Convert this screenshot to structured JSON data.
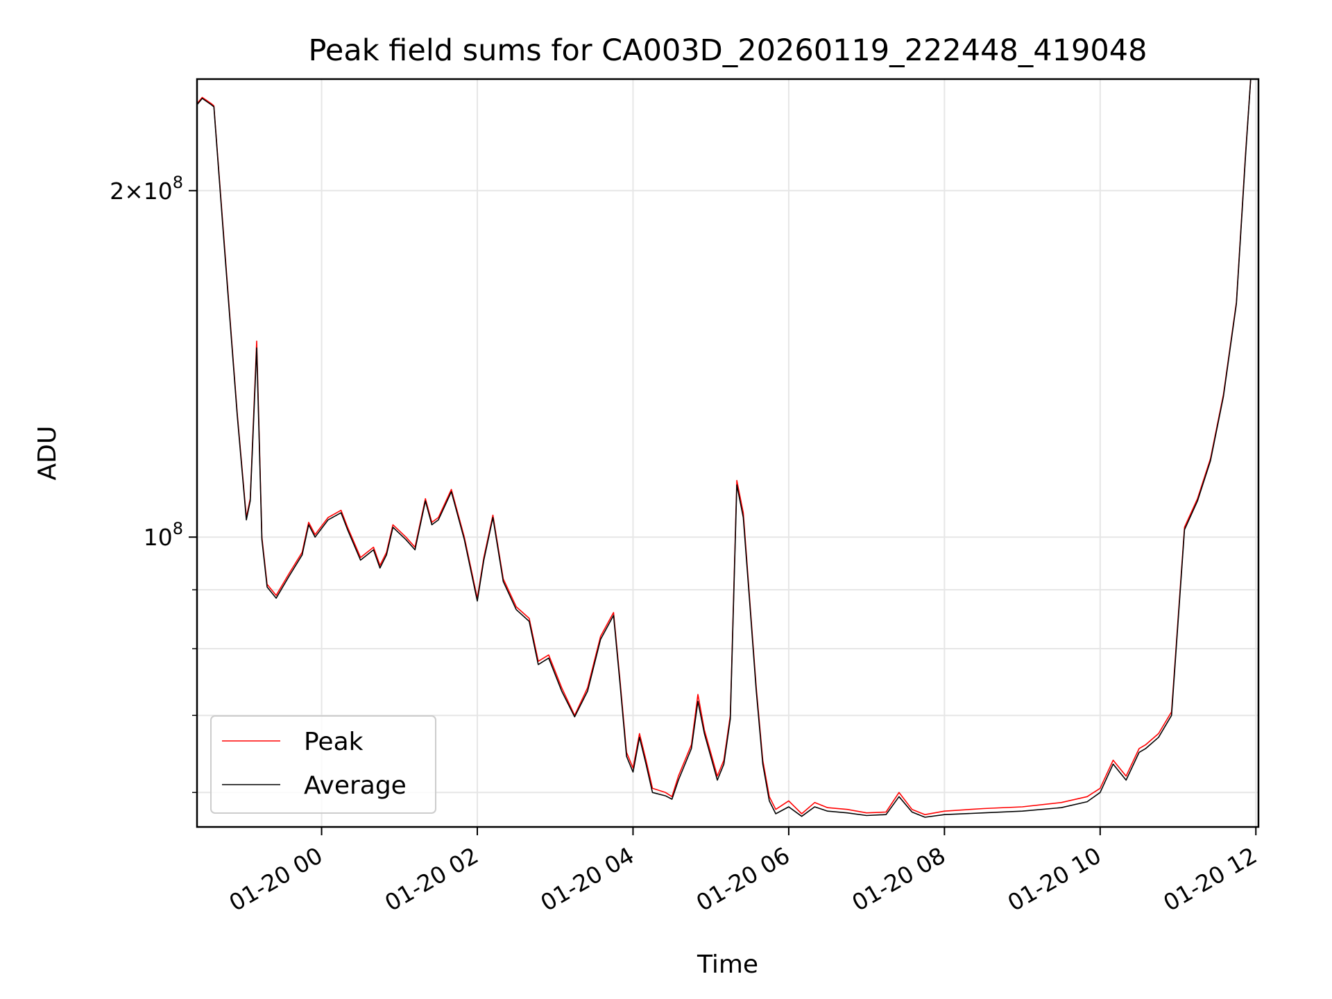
{
  "chart_data": {
    "type": "line",
    "title": "Peak field sums for CA003D_20260119_222448_419048",
    "xlabel": "Time",
    "ylabel": "ADU",
    "x_range": [
      "2026-01-19T22:24",
      "2026-01-20T12:02"
    ],
    "ylim": [
      56000000,
      250000000
    ],
    "y_scale": "log",
    "grid": true,
    "legend_position": "lower-left",
    "x_ticks": [
      {
        "value": "2026-01-20T00:00",
        "label": "01-20 00"
      },
      {
        "value": "2026-01-20T02:00",
        "label": "01-20 02"
      },
      {
        "value": "2026-01-20T04:00",
        "label": "01-20 04"
      },
      {
        "value": "2026-01-20T06:00",
        "label": "01-20 06"
      },
      {
        "value": "2026-01-20T08:00",
        "label": "01-20 08"
      },
      {
        "value": "2026-01-20T10:00",
        "label": "01-20 10"
      },
      {
        "value": "2026-01-20T12:00",
        "label": "01-20 12"
      }
    ],
    "y_major_ticks": [
      {
        "value": 200000000,
        "label_base": "2×10",
        "label_exp": "8"
      },
      {
        "value": 100000000,
        "label_base": "10",
        "label_exp": "8"
      }
    ],
    "y_minor_ticks": [
      60000000,
      70000000,
      80000000,
      90000000
    ],
    "series": [
      {
        "name": "Peak",
        "color": "#ff0000",
        "points": [
          [
            "2026-01-19T22:24",
            238000000
          ],
          [
            "2026-01-19T22:28",
            241000000
          ],
          [
            "2026-01-19T22:35",
            238000000
          ],
          [
            "2026-01-19T22:37",
            237000000
          ],
          [
            "2026-01-19T22:45",
            180000000
          ],
          [
            "2026-01-19T22:55",
            128000000
          ],
          [
            "2026-01-19T23:02",
            104000000
          ],
          [
            "2026-01-19T23:05",
            108000000
          ],
          [
            "2026-01-19T23:10",
            148000000
          ],
          [
            "2026-01-19T23:14",
            100000000
          ],
          [
            "2026-01-19T23:18",
            91000000
          ],
          [
            "2026-01-19T23:25",
            89000000
          ],
          [
            "2026-01-19T23:35",
            93000000
          ],
          [
            "2026-01-19T23:45",
            97000000
          ],
          [
            "2026-01-19T23:50",
            103000000
          ],
          [
            "2026-01-19T23:55",
            100500000
          ],
          [
            "2026-01-20T00:05",
            104000000
          ],
          [
            "2026-01-20T00:15",
            105500000
          ],
          [
            "2026-01-20T00:20",
            102000000
          ],
          [
            "2026-01-20T00:30",
            96000000
          ],
          [
            "2026-01-20T00:40",
            98000000
          ],
          [
            "2026-01-20T00:45",
            94500000
          ],
          [
            "2026-01-20T00:50",
            97000000
          ],
          [
            "2026-01-20T00:55",
            102500000
          ],
          [
            "2026-01-20T01:05",
            100000000
          ],
          [
            "2026-01-20T01:12",
            98000000
          ],
          [
            "2026-01-20T01:20",
            108000000
          ],
          [
            "2026-01-20T01:25",
            103000000
          ],
          [
            "2026-01-20T01:30",
            104000000
          ],
          [
            "2026-01-20T01:40",
            110000000
          ],
          [
            "2026-01-20T01:50",
            100000000
          ],
          [
            "2026-01-20T02:00",
            88500000
          ],
          [
            "2026-01-20T02:05",
            96000000
          ],
          [
            "2026-01-20T02:12",
            104500000
          ],
          [
            "2026-01-20T02:20",
            92000000
          ],
          [
            "2026-01-20T02:30",
            87000000
          ],
          [
            "2026-01-20T02:40",
            85000000
          ],
          [
            "2026-01-20T02:47",
            78000000
          ],
          [
            "2026-01-20T02:55",
            79000000
          ],
          [
            "2026-01-20T03:05",
            74000000
          ],
          [
            "2026-01-20T03:15",
            70000000
          ],
          [
            "2026-01-20T03:25",
            74000000
          ],
          [
            "2026-01-20T03:35",
            82000000
          ],
          [
            "2026-01-20T03:45",
            86000000
          ],
          [
            "2026-01-20T03:50",
            75000000
          ],
          [
            "2026-01-20T03:55",
            65000000
          ],
          [
            "2026-01-20T04:00",
            63000000
          ],
          [
            "2026-01-20T04:05",
            67500000
          ],
          [
            "2026-01-20T04:10",
            64000000
          ],
          [
            "2026-01-20T04:15",
            60500000
          ],
          [
            "2026-01-20T04:25",
            60000000
          ],
          [
            "2026-01-20T04:30",
            59500000
          ],
          [
            "2026-01-20T04:35",
            62000000
          ],
          [
            "2026-01-20T04:45",
            66000000
          ],
          [
            "2026-01-20T04:50",
            73000000
          ],
          [
            "2026-01-20T04:55",
            68000000
          ],
          [
            "2026-01-20T05:05",
            62000000
          ],
          [
            "2026-01-20T05:10",
            64000000
          ],
          [
            "2026-01-20T05:15",
            70000000
          ],
          [
            "2026-01-20T05:20",
            112000000
          ],
          [
            "2026-01-20T05:25",
            105000000
          ],
          [
            "2026-01-20T05:30",
            88000000
          ],
          [
            "2026-01-20T05:35",
            74000000
          ],
          [
            "2026-01-20T05:40",
            64000000
          ],
          [
            "2026-01-20T05:45",
            59500000
          ],
          [
            "2026-01-20T05:50",
            58000000
          ],
          [
            "2026-01-20T06:00",
            59000000
          ],
          [
            "2026-01-20T06:10",
            57500000
          ],
          [
            "2026-01-20T06:20",
            58800000
          ],
          [
            "2026-01-20T06:30",
            58200000
          ],
          [
            "2026-01-20T06:45",
            58000000
          ],
          [
            "2026-01-20T07:00",
            57600000
          ],
          [
            "2026-01-20T07:15",
            57700000
          ],
          [
            "2026-01-20T07:25",
            60000000
          ],
          [
            "2026-01-20T07:35",
            58000000
          ],
          [
            "2026-01-20T07:45",
            57400000
          ],
          [
            "2026-01-20T08:00",
            57800000
          ],
          [
            "2026-01-20T08:30",
            58100000
          ],
          [
            "2026-01-20T09:00",
            58300000
          ],
          [
            "2026-01-20T09:30",
            58800000
          ],
          [
            "2026-01-20T09:50",
            59500000
          ],
          [
            "2026-01-20T10:00",
            60500000
          ],
          [
            "2026-01-20T10:10",
            64000000
          ],
          [
            "2026-01-20T10:20",
            62000000
          ],
          [
            "2026-01-20T10:30",
            65500000
          ],
          [
            "2026-01-20T10:35",
            66000000
          ],
          [
            "2026-01-20T10:45",
            67500000
          ],
          [
            "2026-01-20T10:55",
            70500000
          ],
          [
            "2026-01-20T11:05",
            102000000
          ],
          [
            "2026-01-20T11:15",
            108000000
          ],
          [
            "2026-01-20T11:25",
            117000000
          ],
          [
            "2026-01-20T11:35",
            133000000
          ],
          [
            "2026-01-20T11:45",
            160000000
          ],
          [
            "2026-01-20T11:52",
            215000000
          ],
          [
            "2026-01-20T11:56",
            250000000
          ],
          [
            "2026-01-20T12:02",
            250000000
          ]
        ]
      },
      {
        "name": "Average",
        "color": "#000000",
        "points": [
          [
            "2026-01-19T22:24",
            237500000
          ],
          [
            "2026-01-19T22:28",
            240500000
          ],
          [
            "2026-01-19T22:35",
            237500000
          ],
          [
            "2026-01-19T22:37",
            236500000
          ],
          [
            "2026-01-19T22:45",
            179000000
          ],
          [
            "2026-01-19T22:55",
            127500000
          ],
          [
            "2026-01-19T23:02",
            103500000
          ],
          [
            "2026-01-19T23:05",
            107500000
          ],
          [
            "2026-01-19T23:10",
            146000000
          ],
          [
            "2026-01-19T23:14",
            99500000
          ],
          [
            "2026-01-19T23:18",
            90500000
          ],
          [
            "2026-01-19T23:25",
            88500000
          ],
          [
            "2026-01-19T23:35",
            92500000
          ],
          [
            "2026-01-19T23:45",
            96500000
          ],
          [
            "2026-01-19T23:50",
            102500000
          ],
          [
            "2026-01-19T23:55",
            100000000
          ],
          [
            "2026-01-20T00:05",
            103500000
          ],
          [
            "2026-01-20T00:15",
            105000000
          ],
          [
            "2026-01-20T00:20",
            101500000
          ],
          [
            "2026-01-20T00:30",
            95500000
          ],
          [
            "2026-01-20T00:40",
            97500000
          ],
          [
            "2026-01-20T00:45",
            94000000
          ],
          [
            "2026-01-20T00:50",
            96500000
          ],
          [
            "2026-01-20T00:55",
            102000000
          ],
          [
            "2026-01-20T01:05",
            99500000
          ],
          [
            "2026-01-20T01:12",
            97500000
          ],
          [
            "2026-01-20T01:20",
            107500000
          ],
          [
            "2026-01-20T01:25",
            102500000
          ],
          [
            "2026-01-20T01:30",
            103500000
          ],
          [
            "2026-01-20T01:40",
            109500000
          ],
          [
            "2026-01-20T01:50",
            99500000
          ],
          [
            "2026-01-20T02:00",
            88000000
          ],
          [
            "2026-01-20T02:05",
            95500000
          ],
          [
            "2026-01-20T02:12",
            104000000
          ],
          [
            "2026-01-20T02:20",
            91500000
          ],
          [
            "2026-01-20T02:30",
            86500000
          ],
          [
            "2026-01-20T02:40",
            84500000
          ],
          [
            "2026-01-20T02:47",
            77500000
          ],
          [
            "2026-01-20T02:55",
            78500000
          ],
          [
            "2026-01-20T03:05",
            73500000
          ],
          [
            "2026-01-20T03:15",
            69800000
          ],
          [
            "2026-01-20T03:25",
            73500000
          ],
          [
            "2026-01-20T03:35",
            81500000
          ],
          [
            "2026-01-20T03:45",
            85500000
          ],
          [
            "2026-01-20T03:50",
            74500000
          ],
          [
            "2026-01-20T03:55",
            64500000
          ],
          [
            "2026-01-20T04:00",
            62500000
          ],
          [
            "2026-01-20T04:05",
            67000000
          ],
          [
            "2026-01-20T04:10",
            63500000
          ],
          [
            "2026-01-20T04:15",
            60000000
          ],
          [
            "2026-01-20T04:25",
            59600000
          ],
          [
            "2026-01-20T04:30",
            59200000
          ],
          [
            "2026-01-20T04:35",
            61500000
          ],
          [
            "2026-01-20T04:45",
            65500000
          ],
          [
            "2026-01-20T04:50",
            72000000
          ],
          [
            "2026-01-20T04:55",
            67500000
          ],
          [
            "2026-01-20T05:05",
            61500000
          ],
          [
            "2026-01-20T05:10",
            63500000
          ],
          [
            "2026-01-20T05:15",
            69500000
          ],
          [
            "2026-01-20T05:20",
            111000000
          ],
          [
            "2026-01-20T05:25",
            104000000
          ],
          [
            "2026-01-20T05:30",
            87500000
          ],
          [
            "2026-01-20T05:35",
            73500000
          ],
          [
            "2026-01-20T05:40",
            63500000
          ],
          [
            "2026-01-20T05:45",
            59000000
          ],
          [
            "2026-01-20T05:50",
            57500000
          ],
          [
            "2026-01-20T06:00",
            58300000
          ],
          [
            "2026-01-20T06:10",
            57200000
          ],
          [
            "2026-01-20T06:20",
            58300000
          ],
          [
            "2026-01-20T06:30",
            57800000
          ],
          [
            "2026-01-20T06:45",
            57600000
          ],
          [
            "2026-01-20T07:00",
            57300000
          ],
          [
            "2026-01-20T07:15",
            57400000
          ],
          [
            "2026-01-20T07:25",
            59500000
          ],
          [
            "2026-01-20T07:35",
            57700000
          ],
          [
            "2026-01-20T07:45",
            57100000
          ],
          [
            "2026-01-20T08:00",
            57400000
          ],
          [
            "2026-01-20T08:30",
            57600000
          ],
          [
            "2026-01-20T09:00",
            57800000
          ],
          [
            "2026-01-20T09:30",
            58200000
          ],
          [
            "2026-01-20T09:50",
            58900000
          ],
          [
            "2026-01-20T10:00",
            60000000
          ],
          [
            "2026-01-20T10:10",
            63500000
          ],
          [
            "2026-01-20T10:20",
            61500000
          ],
          [
            "2026-01-20T10:30",
            65000000
          ],
          [
            "2026-01-20T10:35",
            65500000
          ],
          [
            "2026-01-20T10:45",
            67000000
          ],
          [
            "2026-01-20T10:55",
            70000000
          ],
          [
            "2026-01-20T11:05",
            101500000
          ],
          [
            "2026-01-20T11:15",
            107500000
          ],
          [
            "2026-01-20T11:25",
            116500000
          ],
          [
            "2026-01-20T11:35",
            132500000
          ],
          [
            "2026-01-20T11:45",
            159500000
          ],
          [
            "2026-01-20T11:52",
            214000000
          ],
          [
            "2026-01-20T11:56",
            250000000
          ],
          [
            "2026-01-20T12:02",
            250000000
          ]
        ]
      }
    ]
  }
}
